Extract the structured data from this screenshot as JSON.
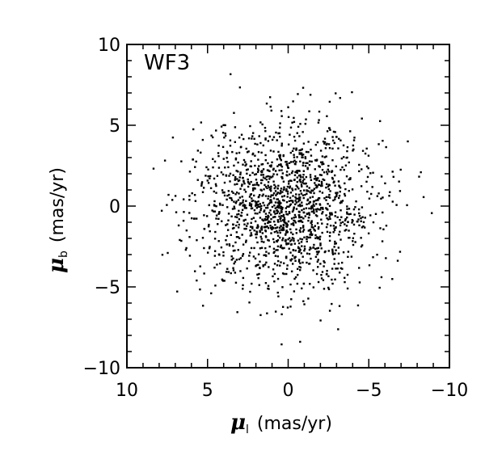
{
  "chart_data": {
    "type": "scatter",
    "annotation": "WF3",
    "xlabel": {
      "symbol": "μ",
      "subscript": "l",
      "unit": "(mas/yr)"
    },
    "ylabel": {
      "symbol": "μ",
      "subscript": "b",
      "unit": "(mas/yr)"
    },
    "xlim": [
      10,
      -10
    ],
    "ylim": [
      -10,
      10
    ],
    "x_inverted": true,
    "xticks": [
      10,
      5,
      0,
      -5,
      -10
    ],
    "xtick_labels": [
      "10",
      "5",
      "0",
      "−5",
      "−10"
    ],
    "yticks": [
      10,
      5,
      0,
      -5,
      -10
    ],
    "ytick_labels": [
      "10",
      "5",
      "0",
      "−5",
      "−10"
    ],
    "grid": false,
    "marker_color": "#000000",
    "distribution": {
      "n_points": 1600,
      "center": [
        0.2,
        -0.1
      ],
      "sigma": [
        2.8,
        2.5
      ],
      "cap": 4.5
    }
  }
}
